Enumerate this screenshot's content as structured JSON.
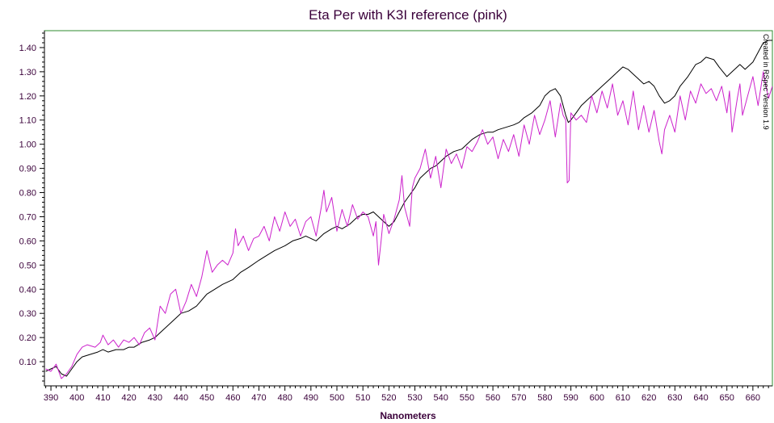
{
  "chart_data": {
    "type": "line",
    "title": "Eta Per with K3I reference (pink)",
    "xlabel": "Nanometers",
    "ylabel": "",
    "annotation": "Created in RSpec Version 1.9",
    "xlim": [
      387.5,
      667.5
    ],
    "ylim": [
      0.0,
      1.47
    ],
    "x_ticks": [
      390,
      400,
      410,
      420,
      430,
      440,
      450,
      460,
      470,
      480,
      490,
      500,
      510,
      520,
      530,
      540,
      550,
      560,
      570,
      580,
      590,
      600,
      610,
      620,
      630,
      640,
      650,
      660
    ],
    "y_ticks": [
      0.1,
      0.2,
      0.3,
      0.4,
      0.5,
      0.6,
      0.7,
      0.8,
      0.9,
      1.0,
      1.1,
      1.2,
      1.3,
      1.4
    ],
    "grid": false,
    "legend": "none",
    "colors": {
      "frame": "#2e8b2e",
      "axis": "#000000",
      "text": "#3a003a",
      "series_eta_per": "#000000",
      "series_k3i": "#cc22cc"
    },
    "series": [
      {
        "key": "eta_per",
        "color": "#000000",
        "x": [
          388,
          390,
          392,
          394,
          396,
          398,
          400,
          402,
          405,
          408,
          410,
          412,
          415,
          418,
          420,
          422,
          425,
          428,
          430,
          432,
          435,
          438,
          440,
          443,
          446,
          450,
          453,
          456,
          460,
          463,
          466,
          470,
          473,
          476,
          480,
          483,
          486,
          488,
          490,
          492,
          495,
          498,
          500,
          502,
          505,
          508,
          510,
          512,
          514,
          516,
          518,
          520,
          522,
          524,
          526,
          528,
          530,
          532,
          534,
          536,
          538,
          540,
          542,
          545,
          548,
          550,
          552,
          555,
          558,
          560,
          562,
          565,
          568,
          570,
          572,
          575,
          578,
          580,
          582,
          584,
          586,
          587,
          588,
          589,
          590,
          592,
          594,
          596,
          598,
          600,
          602,
          605,
          608,
          610,
          612,
          614,
          616,
          618,
          620,
          622,
          624,
          626,
          628,
          630,
          632,
          635,
          638,
          640,
          642,
          645,
          647,
          650,
          652,
          655,
          657,
          660,
          662,
          664,
          666,
          667.5
        ],
        "y": [
          0.06,
          0.07,
          0.08,
          0.05,
          0.04,
          0.07,
          0.1,
          0.12,
          0.13,
          0.14,
          0.15,
          0.14,
          0.15,
          0.15,
          0.16,
          0.16,
          0.18,
          0.19,
          0.2,
          0.22,
          0.25,
          0.28,
          0.3,
          0.31,
          0.33,
          0.38,
          0.4,
          0.42,
          0.44,
          0.47,
          0.49,
          0.52,
          0.54,
          0.56,
          0.58,
          0.6,
          0.61,
          0.62,
          0.61,
          0.6,
          0.63,
          0.65,
          0.66,
          0.65,
          0.67,
          0.7,
          0.71,
          0.71,
          0.72,
          0.7,
          0.68,
          0.66,
          0.68,
          0.72,
          0.76,
          0.79,
          0.82,
          0.86,
          0.88,
          0.9,
          0.91,
          0.93,
          0.95,
          0.97,
          0.98,
          1.0,
          1.02,
          1.04,
          1.05,
          1.05,
          1.06,
          1.07,
          1.08,
          1.09,
          1.11,
          1.13,
          1.16,
          1.2,
          1.22,
          1.23,
          1.2,
          1.16,
          1.12,
          1.09,
          1.1,
          1.13,
          1.16,
          1.18,
          1.2,
          1.22,
          1.24,
          1.27,
          1.3,
          1.32,
          1.31,
          1.29,
          1.27,
          1.25,
          1.26,
          1.24,
          1.2,
          1.17,
          1.18,
          1.2,
          1.24,
          1.28,
          1.33,
          1.34,
          1.36,
          1.35,
          1.32,
          1.28,
          1.3,
          1.33,
          1.31,
          1.34,
          1.38,
          1.42,
          1.43,
          1.43
        ]
      },
      {
        "key": "k3i",
        "color": "#cc22cc",
        "x": [
          388,
          390,
          392,
          394,
          396,
          398,
          400,
          402,
          404,
          407,
          409,
          410,
          412,
          414,
          416,
          418,
          420,
          422,
          424,
          426,
          428,
          430,
          431,
          432,
          434,
          436,
          438,
          440,
          442,
          444,
          446,
          448,
          450,
          452,
          454,
          456,
          458,
          460,
          461,
          462,
          464,
          466,
          468,
          470,
          472,
          474,
          476,
          478,
          480,
          482,
          484,
          486,
          488,
          490,
          492,
          494,
          495,
          496,
          498,
          500,
          502,
          504,
          506,
          508,
          510,
          512,
          514,
          515,
          516,
          517,
          518,
          520,
          522,
          524,
          525,
          526,
          528,
          529,
          530,
          532,
          534,
          536,
          538,
          540,
          542,
          544,
          546,
          548,
          550,
          552,
          554,
          556,
          558,
          560,
          562,
          564,
          566,
          568,
          570,
          572,
          574,
          576,
          578,
          580,
          582,
          584,
          586,
          587,
          588,
          588.6,
          589.3,
          590,
          592,
          594,
          596,
          598,
          600,
          602,
          604,
          606,
          608,
          610,
          612,
          614,
          616,
          618,
          620,
          622,
          624,
          625,
          626,
          628,
          630,
          632,
          634,
          636,
          638,
          640,
          642,
          644,
          646,
          648,
          650,
          651,
          652,
          654,
          655,
          656,
          658,
          660,
          662,
          664,
          666,
          667.5
        ],
        "y": [
          0.07,
          0.06,
          0.09,
          0.03,
          0.05,
          0.08,
          0.13,
          0.16,
          0.17,
          0.16,
          0.18,
          0.21,
          0.17,
          0.19,
          0.16,
          0.19,
          0.18,
          0.2,
          0.17,
          0.22,
          0.24,
          0.19,
          0.26,
          0.33,
          0.3,
          0.38,
          0.4,
          0.3,
          0.35,
          0.42,
          0.37,
          0.45,
          0.56,
          0.47,
          0.5,
          0.52,
          0.5,
          0.55,
          0.65,
          0.58,
          0.62,
          0.56,
          0.61,
          0.62,
          0.66,
          0.6,
          0.7,
          0.64,
          0.72,
          0.66,
          0.69,
          0.62,
          0.68,
          0.7,
          0.62,
          0.74,
          0.81,
          0.72,
          0.78,
          0.64,
          0.73,
          0.66,
          0.75,
          0.69,
          0.72,
          0.7,
          0.62,
          0.68,
          0.5,
          0.6,
          0.71,
          0.63,
          0.69,
          0.77,
          0.87,
          0.74,
          0.66,
          0.82,
          0.86,
          0.9,
          0.98,
          0.86,
          0.95,
          0.82,
          0.98,
          0.92,
          0.96,
          0.9,
          0.99,
          0.97,
          1.01,
          1.06,
          1.0,
          1.03,
          0.94,
          1.02,
          0.97,
          1.04,
          0.95,
          1.08,
          1.0,
          1.12,
          1.04,
          1.1,
          1.18,
          1.03,
          1.17,
          1.12,
          1.1,
          0.84,
          0.85,
          1.13,
          1.1,
          1.12,
          1.09,
          1.2,
          1.13,
          1.22,
          1.15,
          1.25,
          1.12,
          1.18,
          1.08,
          1.22,
          1.06,
          1.16,
          1.05,
          1.14,
          1.01,
          0.96,
          1.06,
          1.12,
          1.05,
          1.2,
          1.1,
          1.22,
          1.17,
          1.25,
          1.21,
          1.23,
          1.18,
          1.24,
          1.13,
          1.22,
          1.05,
          1.19,
          1.25,
          1.12,
          1.2,
          1.28,
          1.16,
          1.3,
          1.19,
          1.24
        ]
      }
    ]
  }
}
